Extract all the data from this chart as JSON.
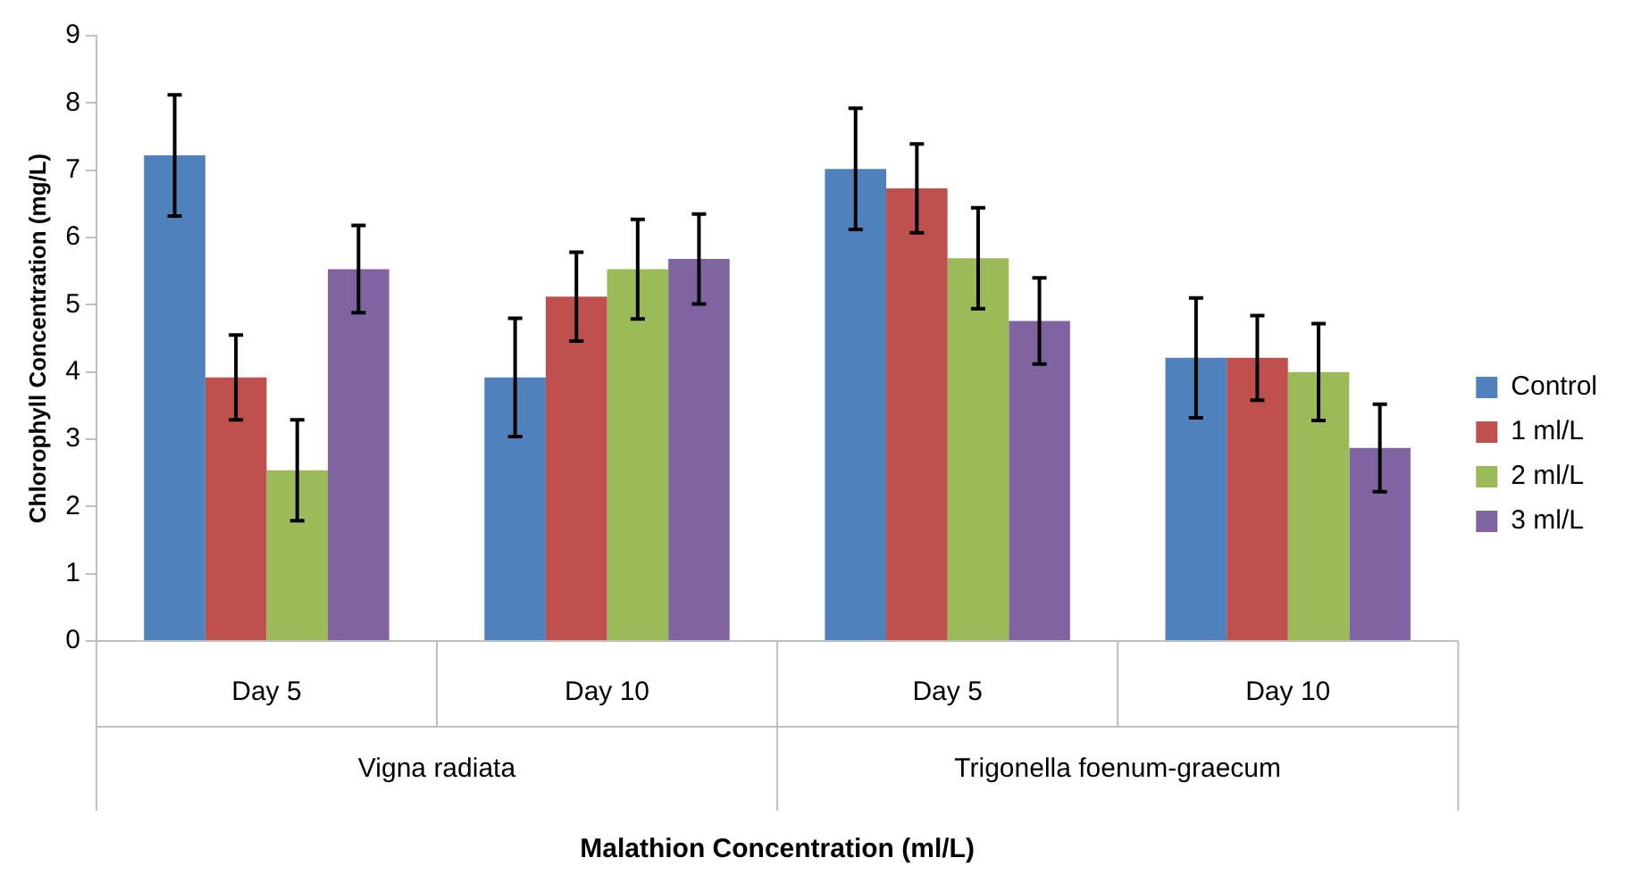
{
  "chart_data": {
    "type": "bar",
    "xlabel": "Malathion Concentration (ml/L)",
    "ylabel": "Chlorophyll Concentration (mg/L)",
    "categories": [
      "Day 5",
      "Day 10",
      "Day 5",
      "Day 10"
    ],
    "series": [
      {
        "name": "Control",
        "color": "#4f81bd",
        "values": [
          7.22,
          3.92,
          7.02,
          4.21
        ],
        "errors": [
          0.9,
          0.88,
          0.9,
          0.89
        ]
      },
      {
        "name": "1 ml/L",
        "color": "#c0504d",
        "values": [
          3.92,
          5.12,
          6.73,
          4.21
        ],
        "errors": [
          0.63,
          0.66,
          0.66,
          0.63
        ]
      },
      {
        "name": "2 ml/L",
        "color": "#9bbb59",
        "values": [
          2.54,
          5.53,
          5.69,
          4.0
        ],
        "errors": [
          0.75,
          0.74,
          0.75,
          0.72
        ]
      },
      {
        "name": "3 ml/L",
        "color": "#8064a2",
        "values": [
          5.53,
          5.68,
          4.76,
          2.87
        ],
        "errors": [
          0.65,
          0.67,
          0.64,
          0.65
        ]
      }
    ],
    "annotations": [
      "Vigna radiata",
      "Trigonella foenum-graecum"
    ],
    "ylim": [
      0,
      9
    ],
    "yticks": [
      0,
      1,
      2,
      3,
      4,
      5,
      6,
      7,
      8,
      9
    ],
    "grid": false,
    "legend": "right"
  }
}
